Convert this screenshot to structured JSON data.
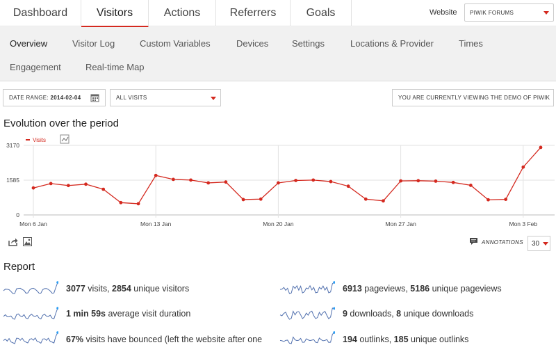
{
  "top_tabs": [
    {
      "label": "Dashboard"
    },
    {
      "label": "Visitors"
    },
    {
      "label": "Actions"
    },
    {
      "label": "Referrers"
    },
    {
      "label": "Goals"
    }
  ],
  "website": {
    "label": "Website",
    "selected": "PIWIK FORUMS"
  },
  "sub_tabs": [
    {
      "label": "Overview"
    },
    {
      "label": "Visitor Log"
    },
    {
      "label": "Custom Variables"
    },
    {
      "label": "Devices"
    },
    {
      "label": "Settings"
    },
    {
      "label": "Locations & Provider"
    },
    {
      "label": "Times"
    },
    {
      "label": "Engagement"
    },
    {
      "label": "Real-time Map"
    }
  ],
  "filters": {
    "date_range_label": "DATE RANGE:",
    "date_range_value": "2014-02-04",
    "segment": "ALL VISITS",
    "demo_notice": "YOU ARE CURRENTLY VIEWING THE DEMO OF PIWIK"
  },
  "evolution": {
    "title": "Evolution over the period",
    "annotations_label": "ANNOTATIONS",
    "limit": "30"
  },
  "chart_data": {
    "type": "line",
    "series": [
      {
        "name": "Visits",
        "color": "#d4291f"
      }
    ],
    "x": [
      "2014-01-06",
      "2014-01-07",
      "2014-01-08",
      "2014-01-09",
      "2014-01-10",
      "2014-01-11",
      "2014-01-12",
      "2014-01-13",
      "2014-01-14",
      "2014-01-15",
      "2014-01-16",
      "2014-01-17",
      "2014-01-18",
      "2014-01-19",
      "2014-01-20",
      "2014-01-21",
      "2014-01-22",
      "2014-01-23",
      "2014-01-24",
      "2014-01-25",
      "2014-01-26",
      "2014-01-27",
      "2014-01-28",
      "2014-01-29",
      "2014-01-30",
      "2014-01-31",
      "2014-02-01",
      "2014-02-02",
      "2014-02-03",
      "2014-02-04"
    ],
    "values": [
      1230,
      1430,
      1340,
      1400,
      1170,
      560,
      510,
      1800,
      1620,
      1590,
      1460,
      1500,
      700,
      720,
      1460,
      1570,
      1590,
      1520,
      1310,
      720,
      640,
      1550,
      1560,
      1540,
      1480,
      1350,
      690,
      710,
      2180,
      3077
    ],
    "x_tick_labels": [
      "Mon 6 Jan",
      "Mon 13 Jan",
      "Mon 20 Jan",
      "Mon 27 Jan",
      "Mon 3 Feb"
    ],
    "x_tick_indices": [
      0,
      7,
      14,
      21,
      28
    ],
    "y_ticks": [
      "0",
      "1585",
      "3170"
    ],
    "y_tick_values": [
      0,
      1585,
      3170
    ],
    "ylim": [
      0,
      3170
    ],
    "grid": true,
    "legend": "top-left"
  },
  "report": {
    "title": "Report",
    "rows_left": [
      {
        "value1": "3077",
        "text1": " visits, ",
        "value2": "2854",
        "text2": " unique visitors"
      },
      {
        "value1": "1 min 59s",
        "text1": " average visit duration",
        "value2": "",
        "text2": ""
      },
      {
        "value1": "67%",
        "text1": " visits have bounced (left the website after one",
        "value2": "",
        "text2": ""
      }
    ],
    "rows_right": [
      {
        "value1": "6913",
        "text1": " pageviews, ",
        "value2": "5186",
        "text2": " unique pageviews"
      },
      {
        "value1": "9",
        "text1": " downloads, ",
        "value2": "8",
        "text2": " unique downloads"
      },
      {
        "value1": "194",
        "text1": " outlinks, ",
        "value2": "185",
        "text2": " unique outlinks"
      }
    ]
  },
  "colors": {
    "accent": "#d4291f",
    "sparkline": "#5170ae"
  },
  "icons": [
    "calendar-icon",
    "chart-type-icon",
    "export-icon",
    "image-icon",
    "annotations-icon"
  ]
}
